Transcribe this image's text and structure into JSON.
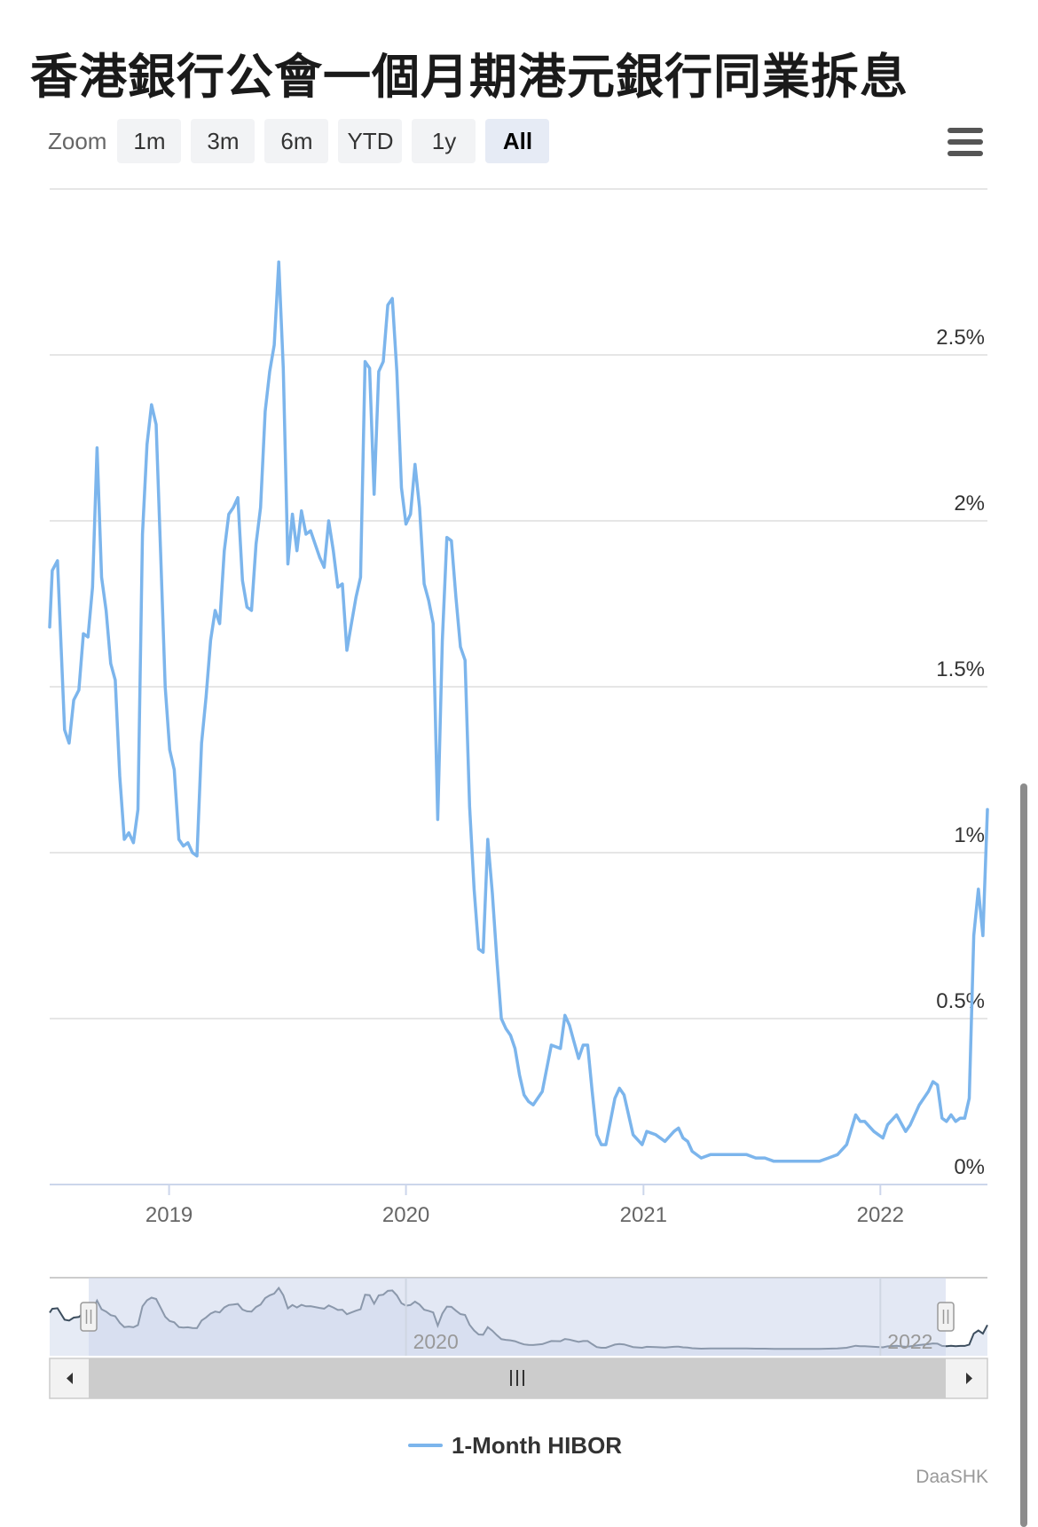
{
  "title": "香港銀行公會一個月期港元銀行同業拆息",
  "zoom": {
    "label": "Zoom",
    "buttons": [
      "1m",
      "3m",
      "6m",
      "YTD",
      "1y",
      "All"
    ],
    "active": "All"
  },
  "credit": "DaaSHK",
  "colors": {
    "series": "#7cb5ec",
    "navigator_fill": "#ccd6eb",
    "grid": "#e6e6e6"
  },
  "icons": {
    "menu": "hamburger-menu-icon",
    "scroll_left": "arrow-left-icon",
    "scroll_right": "arrow-right-icon",
    "scroll_thumb": "grip-lines-icon"
  },
  "chart_data": {
    "type": "line",
    "title": "香港銀行公會一個月期港元銀行同業拆息",
    "xlabel": "",
    "ylabel": "",
    "x_axis": {
      "type": "datetime",
      "range": [
        "2018-07-01",
        "2022-06-15"
      ],
      "ticks": [
        "2019",
        "2020",
        "2021",
        "2022"
      ]
    },
    "y_axis": {
      "range": [
        0,
        3.0
      ],
      "ticks": [
        "0%",
        "0.5%",
        "1%",
        "1.5%",
        "2%",
        "2.5%"
      ],
      "position": "right",
      "unit": "%"
    },
    "grid": true,
    "legend": {
      "position": "bottom-center",
      "entries": [
        "1-Month HIBOR"
      ]
    },
    "navigator": {
      "ticks": [
        "2020",
        "2022"
      ]
    },
    "series": [
      {
        "name": "1-Month HIBOR",
        "x": [
          "2018-07-01",
          "2018-07-05",
          "2018-07-13",
          "2018-07-24",
          "2018-07-31",
          "2018-08-07",
          "2018-08-15",
          "2018-08-22",
          "2018-08-29",
          "2018-09-05",
          "2018-09-12",
          "2018-09-19",
          "2018-09-26",
          "2018-10-03",
          "2018-10-10",
          "2018-10-17",
          "2018-10-24",
          "2018-10-31",
          "2018-11-07",
          "2018-11-14",
          "2018-11-21",
          "2018-11-28",
          "2018-12-05",
          "2018-12-12",
          "2018-12-19",
          "2018-12-26",
          "2019-01-02",
          "2019-01-09",
          "2019-01-16",
          "2019-01-23",
          "2019-01-30",
          "2019-02-06",
          "2019-02-13",
          "2019-02-20",
          "2019-02-27",
          "2019-03-06",
          "2019-03-13",
          "2019-03-20",
          "2019-03-27",
          "2019-04-03",
          "2019-04-10",
          "2019-04-17",
          "2019-04-24",
          "2019-05-01",
          "2019-05-08",
          "2019-05-15",
          "2019-05-22",
          "2019-05-29",
          "2019-06-05",
          "2019-06-12",
          "2019-06-19",
          "2019-06-26",
          "2019-07-03",
          "2019-07-10",
          "2019-07-17",
          "2019-07-24",
          "2019-07-31",
          "2019-08-07",
          "2019-08-14",
          "2019-08-21",
          "2019-08-28",
          "2019-09-04",
          "2019-09-11",
          "2019-09-18",
          "2019-09-25",
          "2019-10-02",
          "2019-10-09",
          "2019-10-16",
          "2019-10-23",
          "2019-10-30",
          "2019-11-06",
          "2019-11-13",
          "2019-11-20",
          "2019-11-27",
          "2019-12-04",
          "2019-12-11",
          "2019-12-18",
          "2019-12-25",
          "2020-01-01",
          "2020-01-08",
          "2020-01-15",
          "2020-01-22",
          "2020-01-29",
          "2020-02-05",
          "2020-02-12",
          "2020-02-19",
          "2020-02-26",
          "2020-03-04",
          "2020-03-11",
          "2020-03-18",
          "2020-03-25",
          "2020-04-01",
          "2020-04-08",
          "2020-04-15",
          "2020-04-22",
          "2020-04-29",
          "2020-05-06",
          "2020-05-13",
          "2020-05-20",
          "2020-05-27",
          "2020-06-03",
          "2020-06-10",
          "2020-06-17",
          "2020-06-24",
          "2020-07-01",
          "2020-07-08",
          "2020-07-15",
          "2020-07-29",
          "2020-08-12",
          "2020-08-26",
          "2020-09-02",
          "2020-09-09",
          "2020-09-16",
          "2020-09-23",
          "2020-09-30",
          "2020-10-07",
          "2020-10-14",
          "2020-10-21",
          "2020-10-28",
          "2020-11-04",
          "2020-11-11",
          "2020-11-18",
          "2020-11-25",
          "2020-12-02",
          "2020-12-16",
          "2020-12-30",
          "2021-01-06",
          "2021-01-20",
          "2021-02-03",
          "2021-02-17",
          "2021-02-24",
          "2021-03-03",
          "2021-03-10",
          "2021-03-17",
          "2021-03-31",
          "2021-04-14",
          "2021-04-28",
          "2021-05-12",
          "2021-05-26",
          "2021-06-09",
          "2021-06-23",
          "2021-07-07",
          "2021-07-21",
          "2021-08-04",
          "2021-08-18",
          "2021-09-01",
          "2021-09-15",
          "2021-09-29",
          "2021-10-13",
          "2021-10-27",
          "2021-11-10",
          "2021-11-24",
          "2021-12-01",
          "2021-12-08",
          "2021-12-22",
          "2022-01-05",
          "2022-01-12",
          "2022-01-26",
          "2022-02-09",
          "2022-02-16",
          "2022-03-02",
          "2022-03-16",
          "2022-03-23",
          "2022-03-30",
          "2022-04-06",
          "2022-04-13",
          "2022-04-20",
          "2022-04-27",
          "2022-05-04",
          "2022-05-11",
          "2022-05-18",
          "2022-05-25",
          "2022-06-01",
          "2022-06-08",
          "2022-06-15"
        ],
        "values": [
          1.68,
          1.85,
          1.88,
          1.37,
          1.33,
          1.46,
          1.49,
          1.66,
          1.65,
          1.8,
          2.22,
          1.83,
          1.73,
          1.57,
          1.52,
          1.23,
          1.04,
          1.06,
          1.03,
          1.13,
          1.96,
          2.23,
          2.35,
          2.29,
          1.9,
          1.5,
          1.31,
          1.25,
          1.04,
          1.02,
          1.03,
          1.0,
          0.99,
          1.33,
          1.47,
          1.64,
          1.73,
          1.69,
          1.91,
          2.02,
          2.04,
          2.07,
          1.82,
          1.74,
          1.73,
          1.93,
          2.04,
          2.33,
          2.45,
          2.53,
          2.78,
          2.46,
          1.87,
          2.02,
          1.91,
          2.03,
          1.96,
          1.97,
          1.93,
          1.89,
          1.86,
          2.0,
          1.91,
          1.8,
          1.81,
          1.61,
          1.69,
          1.77,
          1.83,
          2.48,
          2.46,
          2.08,
          2.45,
          2.48,
          2.65,
          2.67,
          2.45,
          2.1,
          1.99,
          2.02,
          2.17,
          2.04,
          1.81,
          1.76,
          1.69,
          1.1,
          1.64,
          1.95,
          1.94,
          1.77,
          1.62,
          1.58,
          1.14,
          0.89,
          0.71,
          0.7,
          1.04,
          0.88,
          0.68,
          0.5,
          0.47,
          0.45,
          0.41,
          0.33,
          0.27,
          0.25,
          0.24,
          0.28,
          0.42,
          0.41,
          0.51,
          0.48,
          0.43,
          0.38,
          0.42,
          0.42,
          0.28,
          0.15,
          0.12,
          0.12,
          0.19,
          0.26,
          0.29,
          0.27,
          0.15,
          0.12,
          0.16,
          0.15,
          0.13,
          0.16,
          0.17,
          0.14,
          0.13,
          0.1,
          0.08,
          0.09,
          0.09,
          0.09,
          0.09,
          0.09,
          0.08,
          0.08,
          0.07,
          0.07,
          0.07,
          0.07,
          0.07,
          0.07,
          0.08,
          0.09,
          0.12,
          0.21,
          0.19,
          0.19,
          0.16,
          0.14,
          0.18,
          0.21,
          0.16,
          0.18,
          0.24,
          0.28,
          0.31,
          0.3,
          0.2,
          0.19,
          0.21,
          0.19,
          0.2,
          0.2,
          0.26,
          0.75,
          0.89,
          0.75,
          1.13
        ]
      }
    ]
  }
}
